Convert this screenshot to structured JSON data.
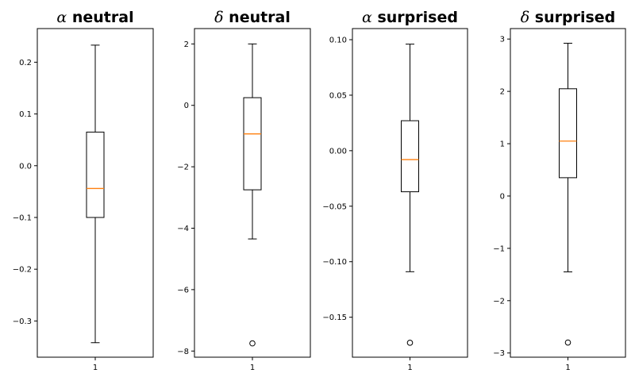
{
  "chart_data": [
    {
      "type": "box",
      "title_symbol": "α",
      "title_text": "neutral",
      "categories": [
        "1"
      ],
      "yticks": [
        -0.3,
        -0.2,
        -0.1,
        0.0,
        0.1,
        0.2
      ],
      "ytick_labels": [
        "−0.3",
        "−0.2",
        "−0.1",
        "0.0",
        "0.1",
        "0.2"
      ],
      "ylim": [
        -0.37,
        0.265
      ],
      "box": {
        "whisker_low": -0.342,
        "q1": -0.1,
        "median": -0.044,
        "q3": 0.065,
        "whisker_high": 0.233,
        "outliers": []
      }
    },
    {
      "type": "box",
      "title_symbol": "δ",
      "title_text": "neutral",
      "categories": [
        "1"
      ],
      "yticks": [
        -8,
        -6,
        -4,
        -2,
        0,
        2
      ],
      "ytick_labels": [
        "−8",
        "−6",
        "−4",
        "−2",
        "0",
        "2"
      ],
      "ylim": [
        -8.2,
        2.5
      ],
      "box": {
        "whisker_low": -4.35,
        "q1": -2.75,
        "median": -0.93,
        "q3": 0.25,
        "whisker_high": 2.0,
        "outliers": [
          -7.75
        ]
      }
    },
    {
      "type": "box",
      "title_symbol": "α",
      "title_text": "surprised",
      "categories": [
        "1"
      ],
      "yticks": [
        -0.15,
        -0.1,
        -0.05,
        0.0,
        0.05,
        0.1
      ],
      "ytick_labels": [
        "−0.15",
        "−0.10",
        "−0.05",
        "0.00",
        "0.05",
        "0.10"
      ],
      "ylim": [
        -0.186,
        0.11
      ],
      "box": {
        "whisker_low": -0.109,
        "q1": -0.037,
        "median": -0.008,
        "q3": 0.027,
        "whisker_high": 0.096,
        "outliers": [
          -0.173
        ]
      }
    },
    {
      "type": "box",
      "title_symbol": "δ",
      "title_text": "surprised",
      "categories": [
        "1"
      ],
      "yticks": [
        -3,
        -2,
        -1,
        0,
        1,
        2,
        3
      ],
      "ytick_labels": [
        "−3",
        "−2",
        "−1",
        "0",
        "1",
        "2",
        "3"
      ],
      "ylim": [
        -3.08,
        3.2
      ],
      "box": {
        "whisker_low": -1.45,
        "q1": 0.35,
        "median": 1.05,
        "q3": 2.05,
        "whisker_high": 2.92,
        "outliers": [
          -2.8
        ]
      }
    }
  ],
  "colors": {
    "median": "#ff7f0e",
    "frame": "#000000",
    "box": "#000000",
    "background": "#ffffff"
  }
}
